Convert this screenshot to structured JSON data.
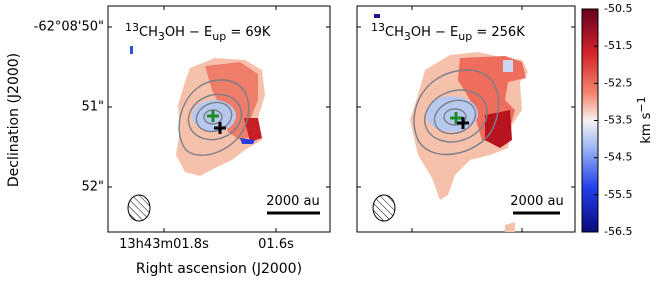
{
  "figure": {
    "panels": [
      {
        "title": [
          "13",
          "CH",
          "3",
          "OH − E",
          "up",
          " = 69K"
        ],
        "scale_bar": "2000 au"
      },
      {
        "title": [
          "13",
          "CH",
          "3",
          "OH − E",
          "up",
          " = 256K"
        ],
        "scale_bar": "2000 au"
      }
    ],
    "y_tick_labels": [
      "-62°08'50\"",
      "51\"",
      "52\""
    ],
    "x_tick_labels": [
      "13h43m01.8s",
      "01.6s"
    ],
    "x_label": "Right ascension (J2000)",
    "y_label": "Declination (J2000)"
  },
  "chart_data": {
    "type": "colorbar",
    "label": [
      "km s",
      "−1"
    ],
    "ylim": [
      -56.5,
      -50.5
    ],
    "yticks": [
      -50.5,
      -51.5,
      -52.5,
      -53.5,
      -54.5,
      -55.5,
      -56.5
    ]
  }
}
